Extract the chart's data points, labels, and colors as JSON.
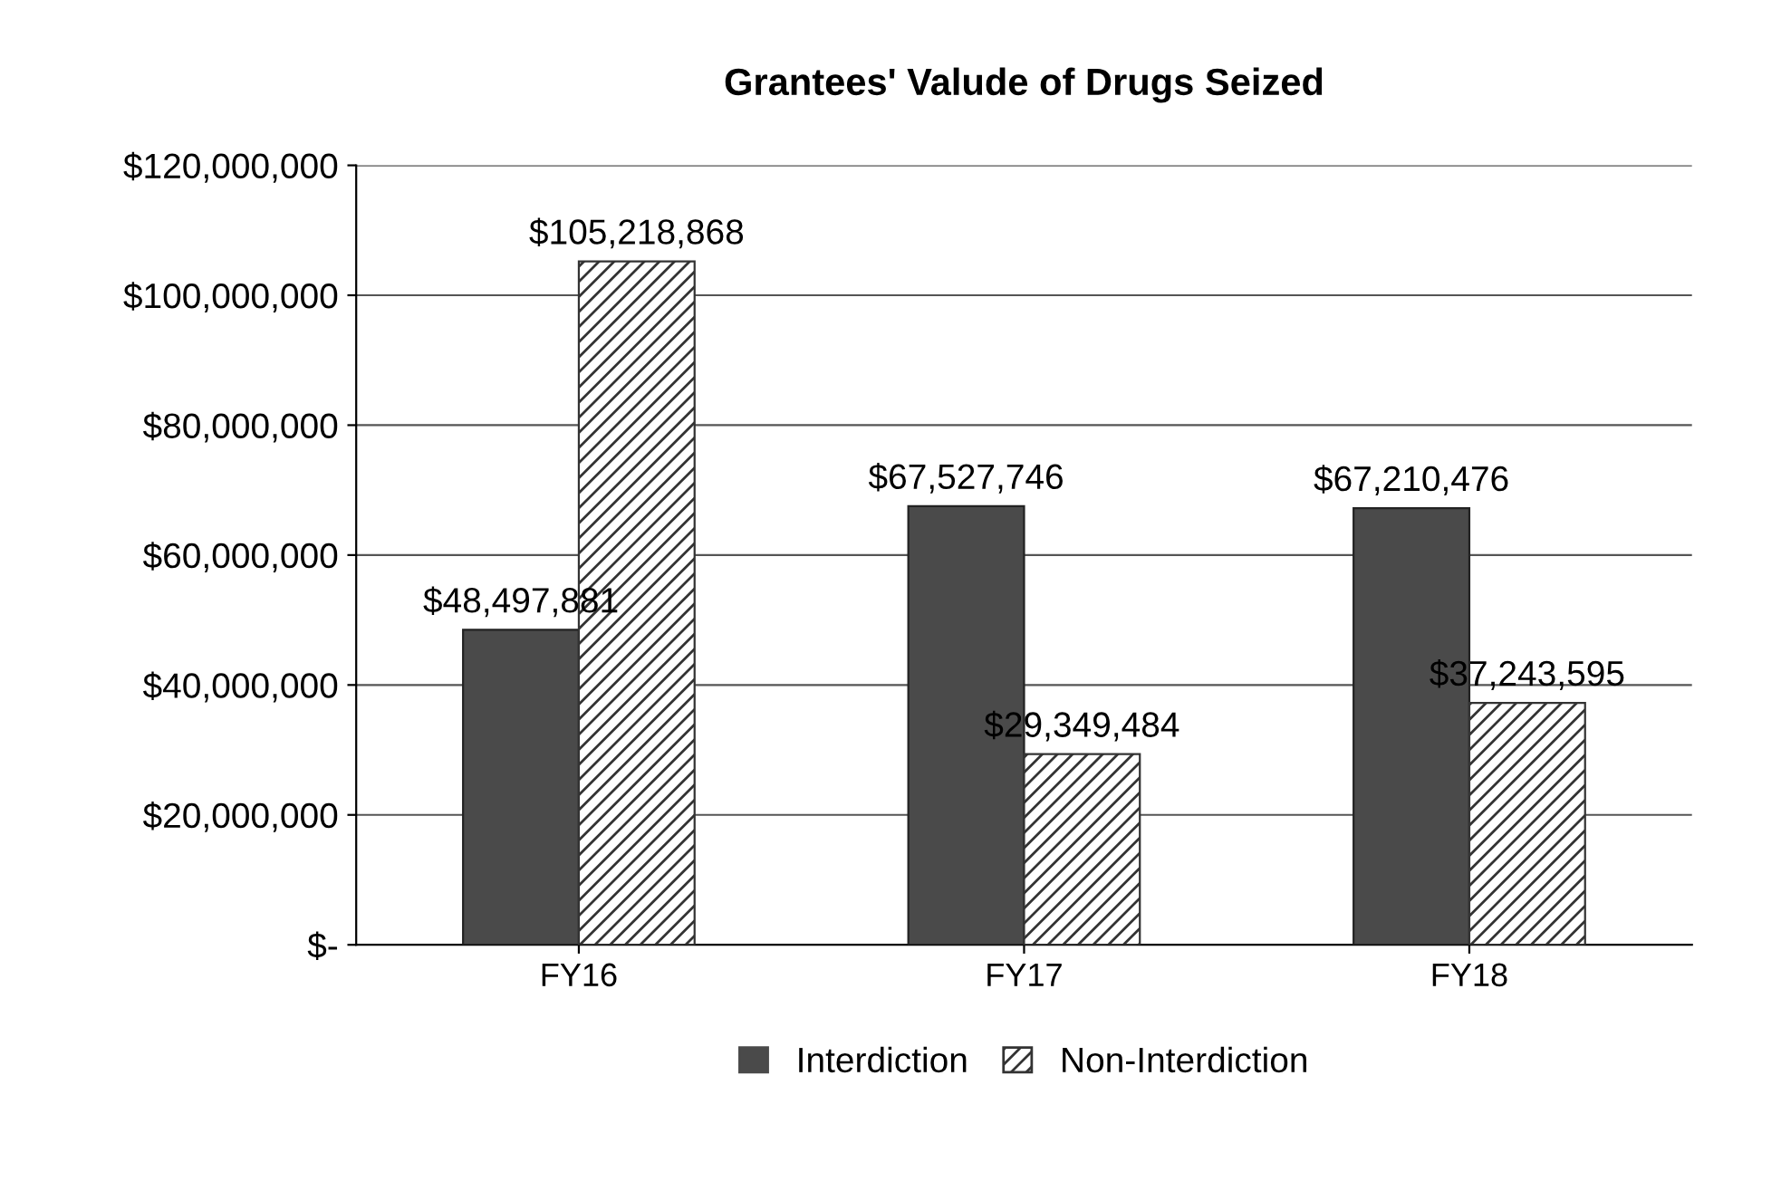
{
  "chart_data": {
    "type": "bar",
    "title": "Grantees' Valude of Drugs Seized",
    "categories": [
      "FY16",
      "FY17",
      "FY18"
    ],
    "series": [
      {
        "name": "Interdiction",
        "color": "#4a4a4a",
        "values": [
          48497881,
          67527746,
          67210476
        ]
      },
      {
        "name": "Non-Interdiction",
        "color": "#333333",
        "values": [
          105218868,
          29349484,
          37243595
        ]
      }
    ],
    "ylim": [
      0,
      120000000
    ],
    "yticks": [
      {
        "value": 0,
        "label": "$-"
      },
      {
        "value": 20000000,
        "label": "$20,000,000"
      },
      {
        "value": 40000000,
        "label": "$40,000,000"
      },
      {
        "value": 60000000,
        "label": "$60,000,000"
      },
      {
        "value": 80000000,
        "label": "$80,000,000"
      },
      {
        "value": 100000000,
        "label": "$100,000,000"
      },
      {
        "value": 120000000,
        "label": "$120,000,000"
      }
    ],
    "value_labels": [
      [
        "$48,497,881",
        "$67,527,746",
        "$67,210,476"
      ],
      [
        "$105,218,868",
        "$29,349,484",
        "$37,243,595"
      ]
    ],
    "grid": "y",
    "legend": "bottom"
  }
}
